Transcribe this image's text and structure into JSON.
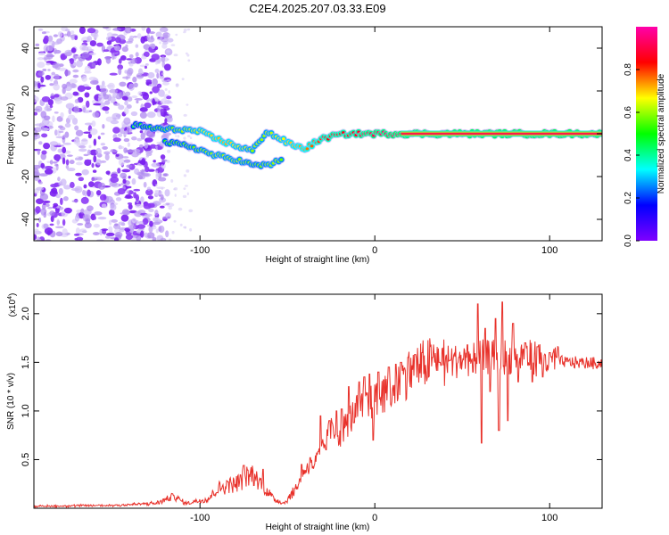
{
  "title": "C2E4.2025.207.03.33.E09",
  "chart_data": [
    {
      "type": "heatmap",
      "xlabel": "Height of straight line (km)",
      "ylabel": "Frequency (Hz)",
      "xlim": [
        -195,
        130
      ],
      "ylim": [
        -50,
        50
      ],
      "xticks": [
        -100,
        0,
        100
      ],
      "yticks": [
        -40,
        -20,
        0,
        20,
        40
      ],
      "colorbar": {
        "label": "Normalized spectral amplitude",
        "range": [
          0,
          1
        ],
        "ticks": [
          "0.0",
          "0.2",
          "0.4",
          "0.6",
          "0.8"
        ],
        "colors": [
          "#7f00ff",
          "#0000ff",
          "#00ffff",
          "#00ff00",
          "#ffff00",
          "#ff0000",
          "#ff00aa"
        ]
      },
      "features": {
        "noise_region_x": [
          -195,
          -125
        ],
        "trace": [
          [
            -138,
            4,
            0.45
          ],
          [
            -130,
            3,
            0.5
          ],
          [
            -120,
            2,
            0.55
          ],
          [
            -110,
            2,
            0.6
          ],
          [
            -100,
            1,
            0.65
          ],
          [
            -92,
            -2,
            0.7
          ],
          [
            -85,
            -4,
            0.72
          ],
          [
            -78,
            -6,
            0.65
          ],
          [
            -70,
            -8,
            0.6
          ],
          [
            -62,
            1,
            0.6
          ],
          [
            -55,
            -2,
            0.65
          ],
          [
            -48,
            -5,
            0.7
          ],
          [
            -40,
            -7,
            0.75
          ],
          [
            -32,
            -3,
            0.8
          ],
          [
            -24,
            -1,
            0.85
          ],
          [
            -15,
            0,
            0.85
          ],
          [
            -5,
            0,
            0.9
          ],
          [
            5,
            0,
            0.92
          ],
          [
            20,
            0,
            0.95
          ],
          [
            50,
            0,
            0.97
          ],
          [
            80,
            0,
            0.98
          ],
          [
            110,
            0,
            0.99
          ],
          [
            130,
            0,
            1.0
          ]
        ],
        "lower_trace": [
          [
            -120,
            -4,
            0.5
          ],
          [
            -105,
            -6,
            0.55
          ],
          [
            -92,
            -10,
            0.6
          ],
          [
            -80,
            -12,
            0.6
          ],
          [
            -68,
            -15,
            0.55
          ],
          [
            -58,
            -14,
            0.6
          ],
          [
            -52,
            -11,
            0.55
          ]
        ]
      }
    },
    {
      "type": "line",
      "xlabel": "Height of straight line (km)",
      "ylabel": "SNR (10 * v/v)",
      "multiplier": "(x10",
      "multiplier_exp": "4",
      "multiplier_close": ")",
      "xlim": [
        -195,
        130
      ],
      "ylim": [
        0,
        2.2
      ],
      "xticks": [
        -100,
        0,
        100
      ],
      "yticks": [
        "0.5",
        "1.0",
        "1.5",
        "2.0"
      ],
      "line_color": "#e8312a",
      "envelope": [
        [
          -195,
          0.02
        ],
        [
          -150,
          0.03
        ],
        [
          -125,
          0.05
        ],
        [
          -115,
          0.12
        ],
        [
          -108,
          0.05
        ],
        [
          -95,
          0.1
        ],
        [
          -90,
          0.2
        ],
        [
          -80,
          0.25
        ],
        [
          -75,
          0.3
        ],
        [
          -70,
          0.35
        ],
        [
          -65,
          0.25
        ],
        [
          -58,
          0.1
        ],
        [
          -52,
          0.05
        ],
        [
          -45,
          0.2
        ],
        [
          -40,
          0.4
        ],
        [
          -35,
          0.45
        ],
        [
          -30,
          0.6
        ],
        [
          -25,
          0.8
        ],
        [
          -20,
          0.75
        ],
        [
          -15,
          0.9
        ],
        [
          -10,
          1.0
        ],
        [
          -5,
          1.05
        ],
        [
          0,
          1.1
        ],
        [
          5,
          1.15
        ],
        [
          10,
          1.2
        ],
        [
          15,
          1.3
        ],
        [
          20,
          1.4
        ],
        [
          25,
          1.45
        ],
        [
          30,
          1.5
        ],
        [
          40,
          1.5
        ],
        [
          50,
          1.52
        ],
        [
          60,
          1.55
        ],
        [
          70,
          1.55
        ],
        [
          80,
          1.56
        ],
        [
          90,
          1.55
        ],
        [
          100,
          1.52
        ],
        [
          110,
          1.5
        ],
        [
          130,
          1.49
        ]
      ],
      "spikes": [
        [
          -115,
          0.13
        ],
        [
          -84,
          0.27
        ],
        [
          -75,
          0.44
        ],
        [
          -64,
          0.4
        ],
        [
          -42,
          0.45
        ],
        [
          -37,
          0.52
        ],
        [
          -31,
          0.95
        ],
        [
          -28,
          0.6
        ],
        [
          -26,
          0.9
        ],
        [
          -22,
          1.0
        ],
        [
          -19,
          1.02
        ],
        [
          -15,
          1.25
        ],
        [
          -12,
          0.88
        ],
        [
          -9,
          1.3
        ],
        [
          -6,
          1.35
        ],
        [
          -3,
          1.38
        ],
        [
          -1,
          0.7
        ],
        [
          2,
          1.4
        ],
        [
          5,
          1.32
        ],
        [
          8,
          1.45
        ],
        [
          12,
          1.48
        ],
        [
          15,
          1.5
        ],
        [
          19,
          1.55
        ],
        [
          23,
          1.58
        ],
        [
          27,
          1.6
        ],
        [
          33,
          1.55
        ],
        [
          37,
          1.5
        ],
        [
          43,
          1.52
        ],
        [
          48,
          1.55
        ],
        [
          53,
          1.68
        ],
        [
          56,
          1.4
        ],
        [
          59,
          2.1
        ],
        [
          61,
          0.67
        ],
        [
          63,
          1.85
        ],
        [
          66,
          1.2
        ],
        [
          69,
          1.95
        ],
        [
          71,
          0.8
        ],
        [
          73,
          2.12
        ],
        [
          76,
          0.9
        ],
        [
          79,
          1.9
        ],
        [
          82,
          1.3
        ],
        [
          86,
          1.7
        ],
        [
          90,
          1.3
        ],
        [
          93,
          1.66
        ],
        [
          96,
          1.35
        ],
        [
          100,
          1.6
        ],
        [
          104,
          1.55
        ]
      ]
    }
  ]
}
